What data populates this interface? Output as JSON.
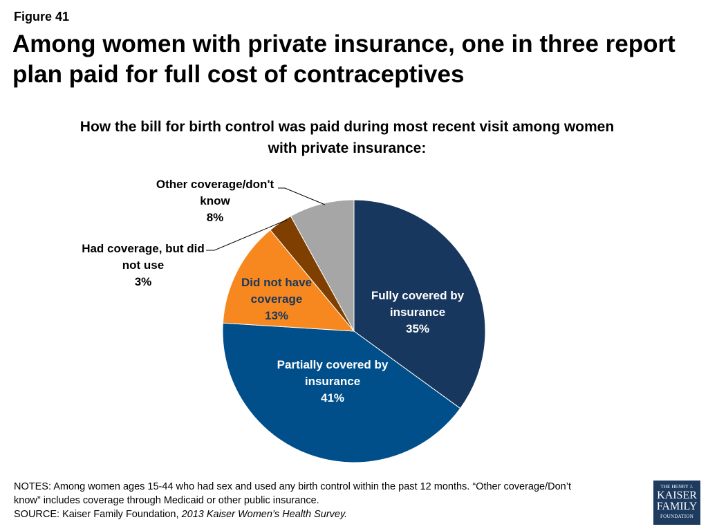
{
  "header": {
    "figure_label": "Figure 41",
    "title": "Among women with private insurance, one in three report plan paid for full cost of contraceptives"
  },
  "chart_data": {
    "type": "pie",
    "title": "How the bill for birth control was paid during most recent visit among women with private insurance:",
    "slices": [
      {
        "label_lines": [
          "Fully covered by",
          "insurance"
        ],
        "value": 35,
        "value_label": "35%",
        "color": "#17375e"
      },
      {
        "label_lines": [
          "Partially covered by",
          "insurance"
        ],
        "value": 41,
        "value_label": "41%",
        "color": "#004f8b"
      },
      {
        "label_lines": [
          "Did not have",
          "coverage"
        ],
        "value": 13,
        "value_label": "13%",
        "color": "#f7881f"
      },
      {
        "label_lines": [
          "Had coverage, but did",
          "not use"
        ],
        "value": 3,
        "value_label": "3%",
        "color": "#7f3f00"
      },
      {
        "label_lines": [
          "Other coverage/don't",
          "know"
        ],
        "value": 8,
        "value_label": "8%",
        "color": "#a6a6a6"
      }
    ]
  },
  "notes": {
    "line1": "NOTES: Among women ages 15-44 who had sex and used any birth control within the past 12 months. “Other coverage/Don’t",
    "line2": "know” includes coverage through Medicaid or other public insurance.",
    "source_prefix": "SOURCE: Kaiser Family Foundation, ",
    "source_italic": "2013 Kaiser Women’s Health Survey."
  },
  "logo": {
    "line1": "THE HENRY J.",
    "line2": "KAISER",
    "line3": "FAMILY",
    "line4": "FOUNDATION"
  }
}
